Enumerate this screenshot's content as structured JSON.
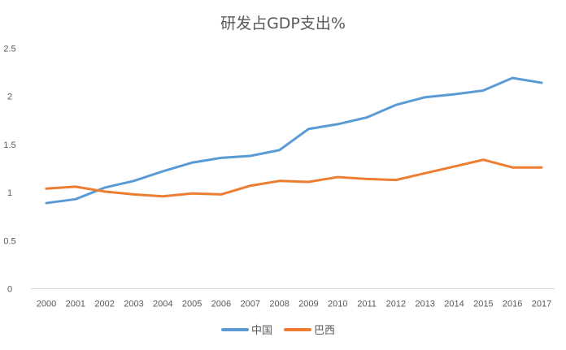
{
  "chart_data": {
    "type": "line",
    "title": "研发占GDP支出%",
    "xlabel": "",
    "ylabel": "",
    "x": [
      "2000",
      "2001",
      "2002",
      "2003",
      "2004",
      "2005",
      "2006",
      "2007",
      "2008",
      "2009",
      "2010",
      "2011",
      "2012",
      "2013",
      "2014",
      "2015",
      "2016",
      "2017"
    ],
    "ylim": [
      0,
      2.5
    ],
    "yticks": [
      "0",
      "0.5",
      "1",
      "1.5",
      "2",
      "2.5"
    ],
    "grid": false,
    "legend": "bottom",
    "series": [
      {
        "name": "中国",
        "color": "#5B9BD5",
        "values": [
          0.89,
          0.93,
          1.05,
          1.12,
          1.22,
          1.31,
          1.36,
          1.38,
          1.44,
          1.66,
          1.71,
          1.78,
          1.91,
          1.99,
          2.02,
          2.06,
          2.19,
          2.14
        ]
      },
      {
        "name": "巴西",
        "color": "#ED7D31",
        "values": [
          1.04,
          1.06,
          1.01,
          0.98,
          0.96,
          0.99,
          0.98,
          1.07,
          1.12,
          1.11,
          1.16,
          1.14,
          1.13,
          1.2,
          1.27,
          1.34,
          1.26,
          1.26
        ]
      }
    ]
  }
}
